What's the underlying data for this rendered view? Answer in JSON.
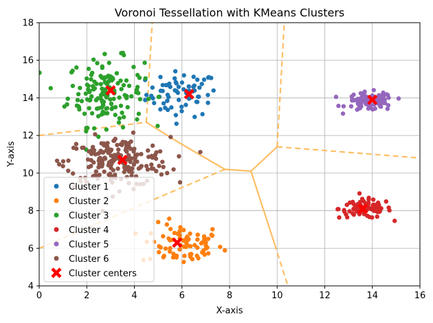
{
  "chart_data": {
    "type": "scatter",
    "title": "Voronoi Tessellation with KMeans Clusters",
    "xlabel": "X-axis",
    "ylabel": "Y-axis",
    "xlim": [
      0,
      16
    ],
    "ylim": [
      4,
      18
    ],
    "xticks": [
      "0",
      "2",
      "4",
      "6",
      "8",
      "10",
      "12",
      "14",
      "16"
    ],
    "yticks": [
      "4",
      "6",
      "8",
      "10",
      "12",
      "14",
      "16",
      "18"
    ],
    "grid": true,
    "legend_position": "lower-left",
    "series": [
      {
        "name": "Cluster 1",
        "color": "#1f77b4",
        "center": [
          6.0,
          14.2
        ],
        "spread": [
          0.75,
          0.6
        ],
        "count": 70
      },
      {
        "name": "Cluster 2",
        "color": "#ff7f0e",
        "center": [
          6.0,
          6.2
        ],
        "spread": [
          0.85,
          0.55
        ],
        "count": 80
      },
      {
        "name": "Cluster 3",
        "color": "#2ca02c",
        "center": [
          2.8,
          14.3
        ],
        "spread": [
          0.8,
          0.9
        ],
        "count": 150
      },
      {
        "name": "Cluster 4",
        "color": "#d62728",
        "center": [
          13.7,
          8.1
        ],
        "spread": [
          0.55,
          0.25
        ],
        "count": 90
      },
      {
        "name": "Cluster 5",
        "color": "#9467bd",
        "center": [
          13.9,
          13.8
        ],
        "spread": [
          0.5,
          0.25
        ],
        "count": 90
      },
      {
        "name": "Cluster 6",
        "color": "#8c564b",
        "center": [
          3.3,
          10.6
        ],
        "spread": [
          1.1,
          0.65
        ],
        "count": 200
      }
    ],
    "cluster_centers": {
      "name": "Cluster centers",
      "color": "#ff0000",
      "points": [
        [
          6.3,
          14.2
        ],
        [
          5.8,
          6.3
        ],
        [
          3.0,
          14.4
        ],
        [
          13.6,
          8.1
        ],
        [
          14.0,
          13.9
        ],
        [
          3.5,
          10.7
        ]
      ]
    },
    "voronoi_edges": {
      "color": "#fdb44a",
      "solid": [
        [
          [
            4.5,
            12.7
          ],
          [
            5.9,
            11.6
          ]
        ],
        [
          [
            5.9,
            11.6
          ],
          [
            7.8,
            10.2
          ]
        ],
        [
          [
            7.8,
            10.2
          ],
          [
            8.9,
            10.1
          ]
        ],
        [
          [
            8.9,
            10.1
          ],
          [
            10.0,
            11.4
          ]
        ],
        [
          [
            8.9,
            10.1
          ],
          [
            9.9,
            6.2
          ]
        ]
      ],
      "dashed": [
        [
          [
            0.0,
            12.0
          ],
          [
            4.5,
            12.7
          ]
        ],
        [
          [
            4.5,
            12.7
          ],
          [
            4.75,
            18.0
          ]
        ],
        [
          [
            10.0,
            11.4
          ],
          [
            10.3,
            18.0
          ]
        ],
        [
          [
            10.0,
            11.4
          ],
          [
            16.0,
            10.8
          ]
        ],
        [
          [
            9.9,
            6.2
          ],
          [
            10.45,
            4.0
          ]
        ],
        [
          [
            7.8,
            10.2
          ],
          [
            0.0,
            6.0
          ]
        ]
      ]
    }
  }
}
